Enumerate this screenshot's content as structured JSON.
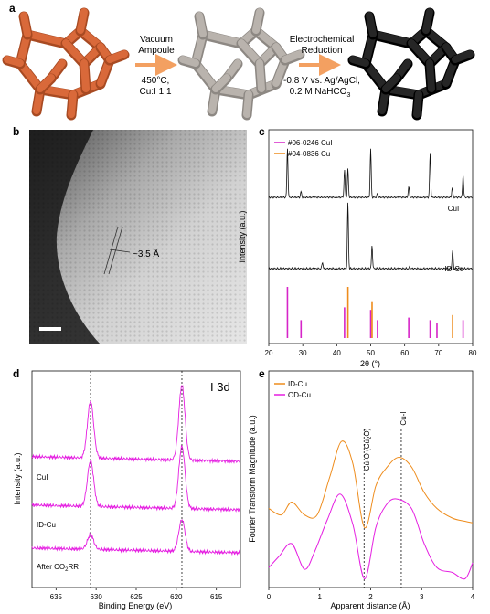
{
  "panels": {
    "a": "a",
    "b": "b",
    "c": "c",
    "d": "d",
    "e": "e"
  },
  "colors": {
    "orange_frame": "#d9693a",
    "grey_frame": "#b9b3ad",
    "dark_frame": "#262626",
    "arrow": "#f3a061",
    "cui_ref": "#d624c8",
    "cu_ref": "#ee8c1c",
    "xps": "#e51ee1",
    "id_cu": "#ee8c1c",
    "od_cu": "#e51ee1"
  },
  "panel_a": {
    "step1_line1": "Vacuum",
    "step1_line2": "Ampoule",
    "step1_cond1": "450°C,",
    "step1_cond2": "Cu:I 1:1",
    "step2_line1": "Electrochemical",
    "step2_line2": "Reduction",
    "step2_cond1": "-0.8 V vs. Ag/AgCl,",
    "step2_cond2": "0.2 M NaHCO",
    "step2_cond2_sub": "3"
  },
  "panel_b": {
    "spacing_label": "~3.5 Å"
  },
  "chart_data": [
    {
      "panel": "c",
      "type": "line",
      "xlabel": "2θ (°)",
      "ylabel": "Intensity (a.u.)",
      "xlim": [
        20,
        80
      ],
      "xticks": [
        20,
        30,
        40,
        50,
        60,
        70,
        80
      ],
      "legend": [
        {
          "name": "#06-0246 CuI",
          "color": "#d624c8"
        },
        {
          "name": "#04-0836 Cu",
          "color": "#ee8c1c"
        }
      ],
      "legend_position": "top-left",
      "series": [
        {
          "name": "CuI",
          "peaks": [
            [
              25.5,
              1.0
            ],
            [
              29.5,
              0.12
            ],
            [
              42.3,
              0.55
            ],
            [
              43.3,
              0.58
            ],
            [
              50.0,
              0.98
            ],
            [
              52.0,
              0.08
            ],
            [
              61.2,
              0.22
            ],
            [
              67.5,
              0.9
            ],
            [
              74.0,
              0.2
            ],
            [
              77.2,
              0.45
            ]
          ]
        },
        {
          "name": "ID-Cu",
          "peaks": [
            [
              35.8,
              0.1
            ],
            [
              43.3,
              1.0
            ],
            [
              50.4,
              0.35
            ],
            [
              61.5,
              0.02
            ],
            [
              74.1,
              0.28
            ]
          ]
        }
      ],
      "references": [
        {
          "name": "#06-0246 CuI",
          "lines": [
            [
              25.5,
              1.0
            ],
            [
              29.5,
              0.35
            ],
            [
              42.3,
              0.6
            ],
            [
              50.0,
              0.55
            ],
            [
              52.0,
              0.35
            ],
            [
              61.2,
              0.4
            ],
            [
              67.5,
              0.35
            ],
            [
              69.5,
              0.3
            ],
            [
              77.2,
              0.35
            ]
          ]
        },
        {
          "name": "#04-0836 Cu",
          "lines": [
            [
              43.3,
              1.0
            ],
            [
              50.4,
              0.72
            ],
            [
              74.1,
              0.45
            ]
          ]
        }
      ]
    },
    {
      "panel": "d",
      "type": "line",
      "title": "I 3d",
      "xlabel": "Binding Energy (eV)",
      "ylabel": "Intensity (a.u.)",
      "xlim": [
        638,
        612
      ],
      "xticks": [
        635,
        630,
        625,
        620,
        615
      ],
      "reference_lines": [
        630.7,
        619.3
      ],
      "series": [
        {
          "name": "CuI",
          "peak_heights": [
            0.62,
            0.82
          ]
        },
        {
          "name": "ID-Cu",
          "peak_heights": [
            0.5,
            0.68
          ]
        },
        {
          "name": "After CO2RR",
          "label_main": "After CO",
          "label_sub": "2",
          "label_tail": "RR",
          "peak_heights": [
            0.16,
            0.35
          ]
        }
      ]
    },
    {
      "panel": "e",
      "type": "line",
      "xlabel": "Apparent distance (Å)",
      "ylabel": "Fourier Transform Magnitude (a.u.)",
      "xlim": [
        0,
        4
      ],
      "xticks": [
        0,
        1,
        2,
        3,
        4
      ],
      "legend": [
        {
          "name": "ID-Cu",
          "color": "#ee8c1c"
        },
        {
          "name": "OD-Cu",
          "color": "#e51ee1"
        }
      ],
      "legend_position": "top-left",
      "annotations": [
        {
          "x": 1.87,
          "label": "Cu-O (Cu",
          "label_sub": "2",
          "label_tail": "O)"
        },
        {
          "x": 2.6,
          "label": "Cu-I"
        }
      ],
      "series": [
        {
          "name": "ID-Cu",
          "x": [
            0,
            0.25,
            0.45,
            0.7,
            0.95,
            1.2,
            1.43,
            1.65,
            1.88,
            2.1,
            2.3,
            2.55,
            2.8,
            3.05,
            3.3,
            3.6,
            3.85,
            4.0
          ],
          "y": [
            0.42,
            0.38,
            0.46,
            0.38,
            0.38,
            0.62,
            0.84,
            0.7,
            0.3,
            0.56,
            0.67,
            0.74,
            0.68,
            0.52,
            0.42,
            0.36,
            0.34,
            0.33
          ]
        },
        {
          "name": "OD-Cu",
          "x": [
            0,
            0.2,
            0.45,
            0.7,
            0.9,
            1.15,
            1.4,
            1.65,
            1.88,
            2.1,
            2.3,
            2.5,
            2.8,
            3.05,
            3.3,
            3.6,
            3.85,
            4.0
          ],
          "y": [
            0.05,
            0.12,
            0.2,
            0.04,
            0.15,
            0.35,
            0.51,
            0.32,
            -0.02,
            0.3,
            0.44,
            0.48,
            0.42,
            0.2,
            0.05,
            0.02,
            -0.02,
            0.08
          ]
        }
      ]
    }
  ]
}
